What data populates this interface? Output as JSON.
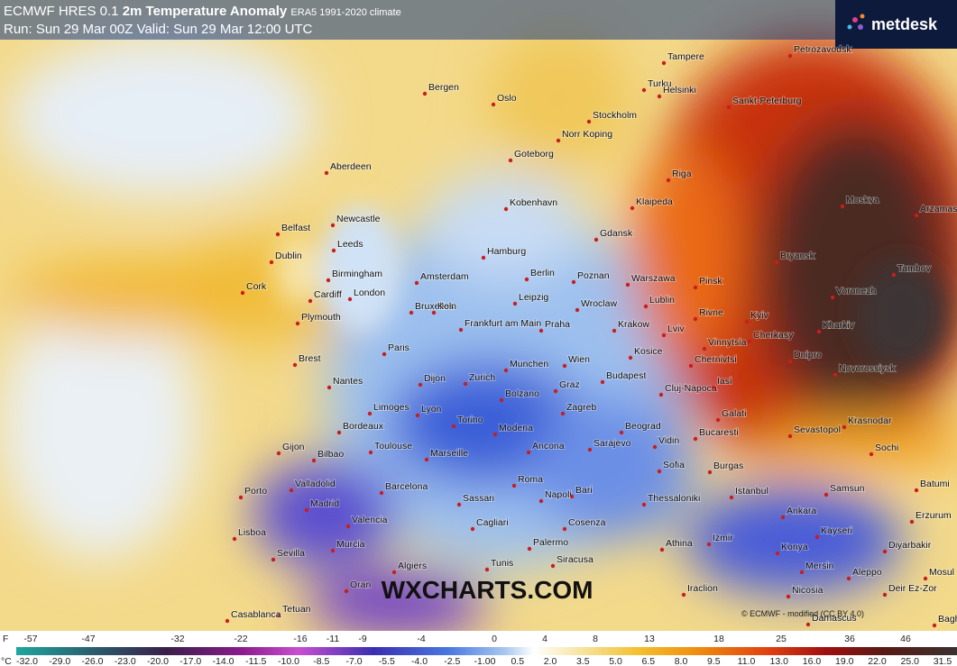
{
  "header": {
    "model": "ECMWF HRES 0.1",
    "title": "2m Temperature Anomaly",
    "climate": "ERA5 1991-2020 climate",
    "run": "Run: Sun 29 Mar 00Z Valid: Sun 29 Mar 12:00 UTC"
  },
  "logo": "metdesk",
  "cities": [
    "Aberdeen",
    "Newcastle",
    "Belfast",
    "Leeds",
    "Dublin",
    "Birmingham",
    "Cork",
    "Cardiff",
    "London",
    "Plymouth",
    "Amsterdam",
    "Bruxelles",
    "Koln",
    "Frankfurt am Main",
    "Hamburg",
    "Berlin",
    "Leipzig",
    "Poznan",
    "Wroclaw",
    "Praha",
    "Krakow",
    "Warszawa",
    "Lublin",
    "Gdansk",
    "Klaipeda",
    "Riga",
    "Tampere",
    "Turku",
    "Helsinki",
    "Sankt-Peterburg",
    "Stockholm",
    "Oslo",
    "Bergen",
    "Goteborg",
    "Norr Koping",
    "Kobenhavn",
    "Paris",
    "Brest",
    "Nantes",
    "Dijon",
    "Limoges",
    "Lyon",
    "Bordeaux",
    "Toulouse",
    "Marseille",
    "Gijon",
    "Bilbao",
    "Porto",
    "Valladolid",
    "Madrid",
    "Barcelona",
    "Valencia",
    "Lisboa",
    "Sevilla",
    "Murcia",
    "Tetuan",
    "Casablanca",
    "Oran",
    "Algiers",
    "Tunis",
    "Munchen",
    "Zurich",
    "Bolzano",
    "Torino",
    "Modena",
    "Ancona",
    "Wien",
    "Graz",
    "Budapest",
    "Zagreb",
    "Kosice",
    "Cluj-Napoca",
    "Beograd",
    "Sarajevo",
    "Vidin",
    "Bucaresti",
    "Sofia",
    "Burgas",
    "Istanbul",
    "Thessaloniki",
    "Athina",
    "Izmir",
    "Iraclion",
    "Roma",
    "Napoli",
    "Bari",
    "Sassari",
    "Cagliari",
    "Cosenza",
    "Palermo",
    "Siracusa",
    "Ankara",
    "Samsun",
    "Kayseri",
    "Konya",
    "Mersin",
    "Nicosia",
    "Aleppo",
    "Deir Ez-Zor",
    "Damascus",
    "Erzurum",
    "Diyarbakir",
    "Batumi",
    "Sochi",
    "Krasnodar",
    "Sevastopol",
    "Galati",
    "Iasi",
    "Chernivtsi",
    "Lviv",
    "Rivne",
    "Pinsk",
    "Vinnytsia",
    "Kyiv",
    "Cherkasy",
    "Kharkiv",
    "Dnipro",
    "Novorossiysk",
    "Voronezh",
    "Tambov",
    "Bryansk",
    "Moskva",
    "Arzamas",
    "Petrozavodsk",
    "Mosul",
    "Baghdad"
  ],
  "watermark": "WXCHARTS.COM",
  "attribution": "© ECMWF - modified (CC BY 4.0)",
  "colorbar": {
    "f_unit": "F",
    "c_unit": "°C",
    "f_labels": [
      "-57",
      "-47",
      "-32",
      "-22",
      "-16",
      "-11",
      "-9",
      "-4",
      "0",
      "4",
      "8",
      "13",
      "18",
      "25",
      "36",
      "46"
    ],
    "c_labels": [
      "-32.0",
      "-29.0",
      "-26.0",
      "-23.0",
      "-20.0",
      "-17.0",
      "-14.0",
      "-11.5",
      "-10.0",
      "-8.5",
      "-7.0",
      "-5.5",
      "-4.0",
      "-2.5",
      "-1.00",
      "0.5",
      "2.0",
      "3.5",
      "5.0",
      "6.5",
      "8.0",
      "9.5",
      "11.0",
      "13.0",
      "16.0",
      "19.0",
      "22.0",
      "25.0",
      "31.5"
    ]
  }
}
